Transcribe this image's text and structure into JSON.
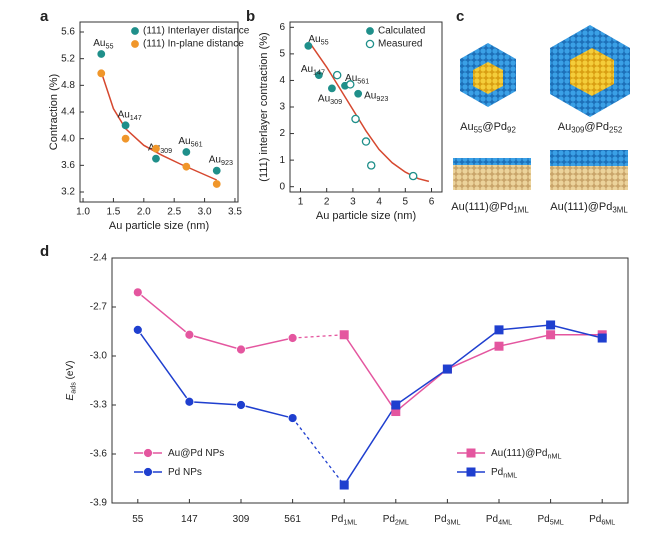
{
  "chart_data": [
    {
      "panel": "a",
      "type": "scatter",
      "xlabel": "Au particle size (nm)",
      "ylabel": "Contraction (%)",
      "xlim": [
        0.95,
        3.55
      ],
      "xticks": [
        {
          "value": 1,
          "label": "1.0"
        },
        1.5,
        {
          "value": 2,
          "label": "2.0"
        },
        2.5,
        {
          "value": 3,
          "label": "3.0"
        },
        3.5
      ],
      "ylim": [
        3.05,
        5.75
      ],
      "yticks": [
        3.2,
        3.6,
        {
          "value": 4,
          "label": "4.0"
        },
        4.4,
        4.8,
        5.2,
        5.6
      ],
      "series": [
        {
          "name": "(111) Interlayer distance",
          "color": "#1f8f8a",
          "marker": "filled",
          "x": [
            1.3,
            1.7,
            2.2,
            2.7,
            3.2
          ],
          "values": [
            5.27,
            4.2,
            3.7,
            3.8,
            3.52
          ],
          "point_labels": [
            [
              {
                "t": "Au"
              },
              {
                "sub": "55"
              }
            ],
            [
              {
                "t": "Au"
              },
              {
                "sub": "147"
              }
            ],
            [
              {
                "t": "Au"
              },
              {
                "sub": "309"
              }
            ],
            [
              {
                "t": "Au"
              },
              {
                "sub": "561"
              }
            ],
            [
              {
                "t": "Au"
              },
              {
                "sub": "923"
              }
            ]
          ]
        },
        {
          "name": "(111) In-plane distance",
          "color": "#f0962a",
          "marker": "filled",
          "x": [
            1.3,
            1.7,
            2.2,
            2.7,
            3.2
          ],
          "values": [
            4.98,
            4.0,
            3.85,
            3.58,
            3.32
          ]
        }
      ],
      "curve": {
        "color": "#d6482f",
        "x": [
          1.3,
          1.5,
          1.7,
          2.0,
          2.3,
          2.6,
          2.9,
          3.2
        ],
        "values": [
          5.0,
          4.45,
          4.15,
          3.9,
          3.75,
          3.62,
          3.5,
          3.38
        ]
      }
    },
    {
      "panel": "b",
      "type": "scatter",
      "xlabel": "Au particle size (nm)",
      "ylabel": "(111) interlayer contraction (%)",
      "xlim": [
        0.6,
        6.4
      ],
      "xticks": [
        1,
        2,
        3,
        4,
        5,
        6
      ],
      "ylim": [
        -0.2,
        6.2
      ],
      "yticks": [
        0,
        1,
        2,
        3,
        4,
        5,
        6
      ],
      "series": [
        {
          "name": "Calculated",
          "color": "#1f8f8a",
          "marker": "filled",
          "x": [
            1.3,
            1.7,
            2.2,
            2.7,
            3.2
          ],
          "values": [
            5.3,
            4.2,
            3.7,
            3.8,
            3.5
          ],
          "point_labels": [
            [
              {
                "t": "Au"
              },
              {
                "sub": "55"
              }
            ],
            [
              {
                "t": "Au"
              },
              {
                "sub": "147"
              }
            ],
            [
              {
                "t": "Au"
              },
              {
                "sub": "309"
              }
            ],
            [
              {
                "t": "Au"
              },
              {
                "sub": "561"
              }
            ],
            [
              {
                "t": "Au"
              },
              {
                "sub": "923"
              }
            ]
          ]
        },
        {
          "name": "Measured",
          "color": "#1f8f8a",
          "marker": "hollow",
          "x": [
            2.4,
            2.9,
            3.1,
            3.5,
            3.7,
            5.3
          ],
          "values": [
            4.2,
            3.85,
            2.55,
            1.7,
            0.8,
            0.4
          ]
        }
      ],
      "curve": {
        "color": "#d6482f",
        "x": [
          1.4,
          2,
          2.5,
          3,
          3.5,
          4,
          4.5,
          5,
          5.5,
          5.9
        ],
        "values": [
          5.35,
          4.5,
          3.7,
          2.9,
          2.1,
          1.4,
          0.9,
          0.55,
          0.3,
          0.2
        ]
      }
    },
    {
      "panel": "c",
      "type": "illustration",
      "labels": [
        [
          {
            "t": "Au"
          },
          {
            "sub": "55"
          },
          {
            "t": "@Pd"
          },
          {
            "sub": "92"
          }
        ],
        [
          {
            "t": "Au"
          },
          {
            "sub": "309"
          },
          {
            "t": "@Pd"
          },
          {
            "sub": "252"
          }
        ],
        [
          {
            "t": "Au(111)@Pd"
          },
          {
            "sub": "1ML"
          }
        ],
        [
          {
            "t": "Au(111)@Pd"
          },
          {
            "sub": "3ML"
          }
        ]
      ]
    },
    {
      "panel": "d",
      "type": "line",
      "ylabel": "E",
      "ylabel_sub": "ads",
      "ylabel_unit": " (eV)",
      "categories": [
        [
          {
            "t": "55"
          }
        ],
        [
          {
            "t": "147"
          }
        ],
        [
          {
            "t": "309"
          }
        ],
        [
          {
            "t": "561"
          }
        ],
        [
          {
            "t": "Pd"
          },
          {
            "sub": "1ML"
          }
        ],
        [
          {
            "t": "Pd"
          },
          {
            "sub": "2ML"
          }
        ],
        [
          {
            "t": "Pd"
          },
          {
            "sub": "3ML"
          }
        ],
        [
          {
            "t": "Pd"
          },
          {
            "sub": "4ML"
          }
        ],
        [
          {
            "t": "Pd"
          },
          {
            "sub": "5ML"
          }
        ],
        [
          {
            "t": "Pd"
          },
          {
            "sub": "6ML"
          }
        ]
      ],
      "ylim": [
        -3.9,
        -2.4
      ],
      "yticks": [
        -3.9,
        -3.6,
        -3.3,
        {
          "value": -3,
          "label": "-3.0"
        },
        -2.7,
        -2.4
      ],
      "series": [
        {
          "name": "Au@Pd NPs",
          "color": "#e4569f",
          "marker": "circle",
          "legend": "lower left",
          "values": [
            -2.61,
            -2.87,
            -2.96,
            -2.89,
            null,
            null,
            null,
            null,
            null,
            null
          ]
        },
        {
          "name": "Pd NPs",
          "color": "#1f3fcf",
          "marker": "circle",
          "legend": "lower left",
          "values": [
            -2.84,
            -3.28,
            -3.3,
            -3.38,
            null,
            null,
            null,
            null,
            null,
            null
          ]
        },
        {
          "name": "Au(111)@Pd",
          "name_sub": "nML",
          "color": "#e4569f",
          "marker": "square",
          "legend": "lower right",
          "values": [
            null,
            null,
            null,
            null,
            -2.87,
            -3.34,
            -3.08,
            -2.94,
            -2.87,
            -2.87
          ]
        },
        {
          "name": "Pd",
          "name_sub": "nML",
          "color": "#1f3fcf",
          "marker": "square",
          "legend": "lower right",
          "values": [
            null,
            null,
            null,
            null,
            -3.79,
            -3.3,
            -3.08,
            -2.84,
            -2.81,
            -2.89
          ]
        }
      ]
    }
  ]
}
